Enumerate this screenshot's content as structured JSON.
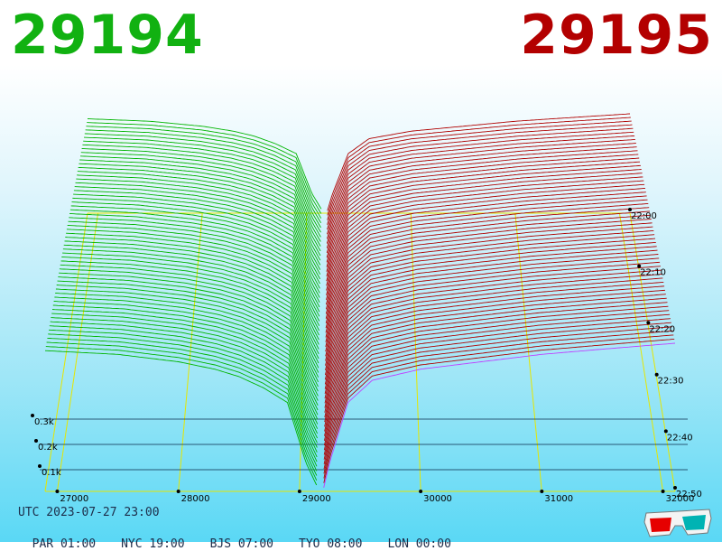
{
  "header": {
    "bid_price": "29194",
    "ask_price": "29195",
    "bid_color": "#11b111",
    "ask_color": "#b30000"
  },
  "footer": {
    "utc": "UTC 2023-07-27 23:00",
    "timezones": [
      {
        "label": "PAR",
        "time": "01:00"
      },
      {
        "label": "NYC",
        "time": "19:00"
      },
      {
        "label": "BJS",
        "time": "07:00"
      },
      {
        "label": "TYO",
        "time": "08:00"
      },
      {
        "label": "LON",
        "time": "00:00"
      }
    ]
  },
  "chart_data": {
    "type": "area",
    "subtype": "3d order book depth",
    "title": "",
    "x_ticks": [
      "27000",
      "28000",
      "29000",
      "30000",
      "31000",
      "32000"
    ],
    "x_range": [
      26900,
      32100
    ],
    "depth_ticks": [
      "0.1k",
      "0.2k",
      "0.3k"
    ],
    "time_ticks": [
      "22:00",
      "22:10",
      "22:20",
      "22:30",
      "22:40",
      "22:50"
    ],
    "series": [
      {
        "name": "bids",
        "color": "#00b400",
        "side": "left"
      },
      {
        "name": "asks",
        "color": "#b00000",
        "side": "right"
      }
    ],
    "snapshot_count": 60,
    "bid_profile": [
      [
        26900,
        190
      ],
      [
        27500,
        185
      ],
      [
        28000,
        175
      ],
      [
        28300,
        165
      ],
      [
        28500,
        155
      ],
      [
        28700,
        140
      ],
      [
        28900,
        120
      ],
      [
        29050,
        40
      ],
      [
        29150,
        5
      ]
    ],
    "ask_profile": [
      [
        29200,
        5
      ],
      [
        29250,
        40
      ],
      [
        29400,
        120
      ],
      [
        29600,
        150
      ],
      [
        30000,
        165
      ],
      [
        30500,
        175
      ],
      [
        31000,
        185
      ],
      [
        31500,
        192
      ],
      [
        32100,
        200
      ]
    ],
    "latest_ask_color": "#c040ff",
    "grid_color": "#e6e600"
  },
  "icons": {
    "glasses": "3d-glasses-icon"
  }
}
